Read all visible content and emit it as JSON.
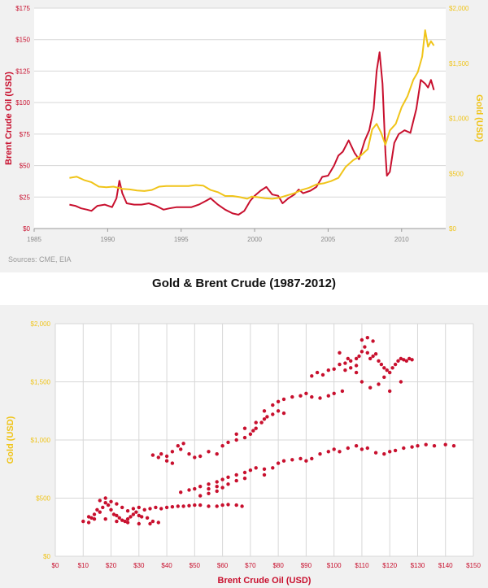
{
  "caption": "Gold & Brent Crude (1987-2012)",
  "source_note": "Sources: CME, EIA",
  "colors": {
    "brent": "#c8102e",
    "gold": "#f0c419",
    "grid": "#d7d7d7",
    "bg": "#f1f1f1",
    "axis_text": "#8a8a8a"
  },
  "chart_data": [
    {
      "type": "line",
      "title": "",
      "xlabel": "",
      "ylabel": "Brent Crude Oil (USD)",
      "y2label": "Gold (USD)",
      "xlim": [
        1985,
        2013
      ],
      "ylim": [
        0,
        175
      ],
      "y2lim": [
        0,
        2000
      ],
      "x_ticks": [
        1985,
        1990,
        1995,
        2000,
        2005,
        2010
      ],
      "x_tick_labels": [
        "1985",
        "1990",
        "1995",
        "2000",
        "2005",
        "2010"
      ],
      "y_ticks": [
        0,
        25,
        50,
        75,
        100,
        125,
        150,
        175
      ],
      "y_tick_labels": [
        "$0",
        "$25",
        "$50",
        "$75",
        "$100",
        "$125",
        "$150",
        "$175"
      ],
      "y2_ticks": [
        0,
        500,
        1000,
        1500,
        2000
      ],
      "y2_tick_labels": [
        "$0",
        "$500",
        "$1,000",
        "$1,500",
        "$2,000"
      ],
      "series": [
        {
          "name": "Brent Crude",
          "axis": "left",
          "x": [
            1987.4,
            1987.8,
            1988.2,
            1988.6,
            1988.9,
            1989.3,
            1989.8,
            1990.3,
            1990.6,
            1990.8,
            1991.0,
            1991.3,
            1991.8,
            1992.3,
            1992.8,
            1993.3,
            1993.8,
            1994.2,
            1994.7,
            1995.2,
            1995.7,
            1996.2,
            1996.7,
            1997.0,
            1997.5,
            1998.0,
            1998.5,
            1998.9,
            1999.3,
            1999.7,
            2000.0,
            2000.4,
            2000.8,
            2001.2,
            2001.6,
            2001.9,
            2002.3,
            2002.7,
            2003.0,
            2003.3,
            2003.8,
            2004.2,
            2004.6,
            2005.0,
            2005.4,
            2005.7,
            2006.0,
            2006.4,
            2006.8,
            2007.1,
            2007.5,
            2007.8,
            2008.1,
            2008.3,
            2008.5,
            2008.7,
            2008.9,
            2009.0,
            2009.2,
            2009.5,
            2009.8,
            2010.2,
            2010.6,
            2011.0,
            2011.3,
            2011.6,
            2011.8,
            2012.0,
            2012.2
          ],
          "values": [
            19,
            18,
            16,
            15,
            14,
            18,
            19,
            17,
            24,
            38,
            28,
            20,
            19,
            19,
            20,
            18,
            15,
            16,
            17,
            17,
            17,
            19,
            22,
            24,
            19,
            15,
            12,
            11,
            14,
            22,
            26,
            30,
            33,
            27,
            26,
            20,
            24,
            27,
            31,
            28,
            30,
            33,
            41,
            42,
            50,
            58,
            61,
            70,
            60,
            55,
            70,
            78,
            95,
            125,
            140,
            115,
            60,
            42,
            45,
            68,
            75,
            78,
            76,
            95,
            118,
            115,
            112,
            118,
            110
          ]
        },
        {
          "name": "Gold",
          "axis": "right",
          "x": [
            1987.4,
            1987.9,
            1988.4,
            1988.9,
            1989.4,
            1989.9,
            1990.4,
            1991.0,
            1991.5,
            1992.0,
            1992.5,
            1993.0,
            1993.5,
            1994.0,
            1994.5,
            1995.0,
            1995.5,
            1996.0,
            1996.5,
            1997.0,
            1997.5,
            1998.0,
            1998.5,
            1999.0,
            1999.5,
            1999.8,
            2000.2,
            2000.7,
            2001.2,
            2001.7,
            2002.2,
            2002.7,
            2003.2,
            2003.7,
            2004.2,
            2004.7,
            2005.2,
            2005.7,
            2006.2,
            2006.7,
            2007.2,
            2007.7,
            2008.0,
            2008.3,
            2008.6,
            2008.9,
            2009.2,
            2009.6,
            2010.0,
            2010.4,
            2010.8,
            2011.1,
            2011.4,
            2011.6,
            2011.8,
            2012.0,
            2012.2
          ],
          "values": [
            460,
            470,
            440,
            420,
            380,
            375,
            380,
            360,
            355,
            345,
            340,
            350,
            380,
            385,
            385,
            385,
            385,
            395,
            390,
            350,
            330,
            295,
            295,
            285,
            270,
            290,
            285,
            275,
            270,
            280,
            300,
            320,
            350,
            370,
            400,
            410,
            430,
            460,
            560,
            620,
            660,
            720,
            900,
            950,
            870,
            760,
            890,
            950,
            1100,
            1200,
            1350,
            1420,
            1560,
            1800,
            1650,
            1700,
            1660
          ]
        }
      ]
    },
    {
      "type": "scatter",
      "title": "",
      "xlabel": "Brent Crude Oil (USD)",
      "ylabel": "Gold (USD)",
      "xlim": [
        0,
        150
      ],
      "ylim": [
        0,
        2000
      ],
      "x_ticks": [
        0,
        10,
        20,
        30,
        40,
        50,
        60,
        70,
        80,
        90,
        100,
        110,
        120,
        130,
        140,
        150
      ],
      "x_tick_labels": [
        "$0",
        "$10",
        "$20",
        "$30",
        "$40",
        "$50",
        "$60",
        "$70",
        "$80",
        "$90",
        "$100",
        "$110",
        "$120",
        "$130",
        "$140",
        "$150"
      ],
      "y_ticks": [
        0,
        500,
        1000,
        1500,
        2000
      ],
      "y_tick_labels": [
        "$0",
        "$500",
        "$1,000",
        "$1,500",
        "$2,000"
      ],
      "points": [
        [
          10,
          300
        ],
        [
          12,
          290
        ],
        [
          13,
          330
        ],
        [
          14,
          360
        ],
        [
          15,
          400
        ],
        [
          16,
          380
        ],
        [
          17,
          420
        ],
        [
          18,
          460
        ],
        [
          19,
          440
        ],
        [
          20,
          400
        ],
        [
          21,
          360
        ],
        [
          22,
          350
        ],
        [
          23,
          330
        ],
        [
          24,
          310
        ],
        [
          25,
          300
        ],
        [
          26,
          320
        ],
        [
          27,
          340
        ],
        [
          28,
          360
        ],
        [
          29,
          380
        ],
        [
          30,
          350
        ],
        [
          31,
          340
        ],
        [
          33,
          330
        ],
        [
          35,
          300
        ],
        [
          37,
          290
        ],
        [
          16,
          480
        ],
        [
          18,
          500
        ],
        [
          20,
          470
        ],
        [
          22,
          450
        ],
        [
          24,
          420
        ],
        [
          26,
          390
        ],
        [
          28,
          410
        ],
        [
          30,
          420
        ],
        [
          32,
          400
        ],
        [
          34,
          410
        ],
        [
          36,
          420
        ],
        [
          38,
          410
        ],
        [
          40,
          420
        ],
        [
          42,
          425
        ],
        [
          44,
          430
        ],
        [
          46,
          430
        ],
        [
          48,
          435
        ],
        [
          50,
          440
        ],
        [
          52,
          440
        ],
        [
          55,
          430
        ],
        [
          58,
          430
        ],
        [
          60,
          440
        ],
        [
          62,
          445
        ],
        [
          65,
          440
        ],
        [
          67,
          430
        ],
        [
          12,
          340
        ],
        [
          14,
          320
        ],
        [
          18,
          320
        ],
        [
          22,
          300
        ],
        [
          26,
          290
        ],
        [
          30,
          280
        ],
        [
          34,
          280
        ],
        [
          45,
          550
        ],
        [
          48,
          570
        ],
        [
          50,
          580
        ],
        [
          52,
          600
        ],
        [
          55,
          620
        ],
        [
          58,
          640
        ],
        [
          60,
          660
        ],
        [
          62,
          680
        ],
        [
          65,
          700
        ],
        [
          68,
          720
        ],
        [
          70,
          740
        ],
        [
          72,
          760
        ],
        [
          75,
          700
        ],
        [
          55,
          580
        ],
        [
          58,
          600
        ],
        [
          62,
          620
        ],
        [
          65,
          650
        ],
        [
          68,
          670
        ],
        [
          52,
          520
        ],
        [
          55,
          540
        ],
        [
          58,
          560
        ],
        [
          60,
          590
        ],
        [
          35,
          870
        ],
        [
          38,
          880
        ],
        [
          40,
          860
        ],
        [
          42,
          900
        ],
        [
          45,
          920
        ],
        [
          48,
          880
        ],
        [
          50,
          850
        ],
        [
          52,
          860
        ],
        [
          55,
          900
        ],
        [
          58,
          880
        ],
        [
          40,
          820
        ],
        [
          42,
          800
        ],
        [
          37,
          850
        ],
        [
          44,
          950
        ],
        [
          46,
          970
        ],
        [
          60,
          950
        ],
        [
          62,
          980
        ],
        [
          65,
          1000
        ],
        [
          68,
          1020
        ],
        [
          70,
          1050
        ],
        [
          72,
          1100
        ],
        [
          74,
          1150
        ],
        [
          76,
          1200
        ],
        [
          78,
          1220
        ],
        [
          80,
          1250
        ],
        [
          82,
          1230
        ],
        [
          75,
          1180
        ],
        [
          71,
          1080
        ],
        [
          65,
          1050
        ],
        [
          68,
          1100
        ],
        [
          72,
          1150
        ],
        [
          75,
          1250
        ],
        [
          78,
          1300
        ],
        [
          80,
          1330
        ],
        [
          82,
          1350
        ],
        [
          85,
          1370
        ],
        [
          88,
          1380
        ],
        [
          90,
          1400
        ],
        [
          92,
          1370
        ],
        [
          95,
          1360
        ],
        [
          98,
          1380
        ],
        [
          100,
          1400
        ],
        [
          103,
          1420
        ],
        [
          75,
          750
        ],
        [
          78,
          760
        ],
        [
          80,
          800
        ],
        [
          82,
          820
        ],
        [
          85,
          830
        ],
        [
          88,
          840
        ],
        [
          90,
          820
        ],
        [
          92,
          840
        ],
        [
          95,
          880
        ],
        [
          98,
          900
        ],
        [
          100,
          920
        ],
        [
          102,
          900
        ],
        [
          105,
          930
        ],
        [
          108,
          950
        ],
        [
          110,
          920
        ],
        [
          112,
          930
        ],
        [
          115,
          890
        ],
        [
          118,
          880
        ],
        [
          120,
          900
        ],
        [
          122,
          910
        ],
        [
          125,
          930
        ],
        [
          128,
          940
        ],
        [
          130,
          950
        ],
        [
          133,
          960
        ],
        [
          136,
          950
        ],
        [
          140,
          960
        ],
        [
          143,
          950
        ],
        [
          92,
          1550
        ],
        [
          94,
          1580
        ],
        [
          96,
          1560
        ],
        [
          98,
          1600
        ],
        [
          100,
          1610
        ],
        [
          102,
          1650
        ],
        [
          104,
          1660
        ],
        [
          106,
          1680
        ],
        [
          108,
          1700
        ],
        [
          109,
          1720
        ],
        [
          110,
          1760
        ],
        [
          111,
          1800
        ],
        [
          112,
          1750
        ],
        [
          113,
          1700
        ],
        [
          114,
          1720
        ],
        [
          115,
          1740
        ],
        [
          116,
          1680
        ],
        [
          117,
          1650
        ],
        [
          118,
          1620
        ],
        [
          119,
          1600
        ],
        [
          120,
          1580
        ],
        [
          121,
          1620
        ],
        [
          122,
          1650
        ],
        [
          123,
          1680
        ],
        [
          124,
          1700
        ],
        [
          125,
          1690
        ],
        [
          126,
          1680
        ],
        [
          127,
          1700
        ],
        [
          128,
          1690
        ],
        [
          110,
          1860
        ],
        [
          112,
          1880
        ],
        [
          114,
          1850
        ],
        [
          108,
          1640
        ],
        [
          106,
          1620
        ],
        [
          104,
          1600
        ],
        [
          110,
          1500
        ],
        [
          113,
          1450
        ],
        [
          116,
          1480
        ],
        [
          120,
          1420
        ],
        [
          124,
          1500
        ],
        [
          118,
          1540
        ],
        [
          108,
          1580
        ],
        [
          105,
          1700
        ],
        [
          102,
          1750
        ]
      ]
    }
  ]
}
